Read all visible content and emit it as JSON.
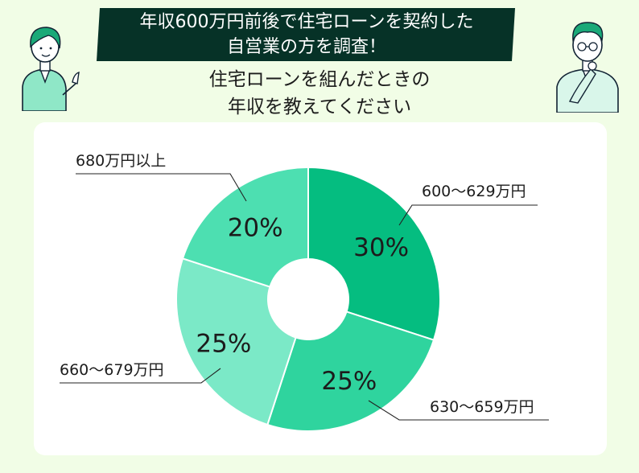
{
  "header": {
    "banner_line1": "年収600万円前後で住宅ローンを契約した",
    "banner_line2": "自営業の方を調査！",
    "question_line1": "住宅ローンを組んだときの",
    "question_line2": "年収を教えてください"
  },
  "colors": {
    "banner": "#063227",
    "background": "#f1fde6",
    "card": "#ffffff"
  },
  "icons": [
    "woman-pointing-icon",
    "man-thinking-icon"
  ],
  "chart_data": {
    "type": "pie",
    "title": "",
    "donut": true,
    "start_angle_deg": 0,
    "direction": "clockwise",
    "series": [
      {
        "name": "600〜629万円",
        "value": 30,
        "label": "30%",
        "color": "#05bd80"
      },
      {
        "name": "630〜659万円",
        "value": 25,
        "label": "25%",
        "color": "#2fd49e"
      },
      {
        "name": "660〜679万円",
        "value": 25,
        "label": "25%",
        "color": "#7be9c7"
      },
      {
        "name": "680万円以上",
        "value": 20,
        "label": "20%",
        "color": "#4ddfb1"
      }
    ]
  }
}
